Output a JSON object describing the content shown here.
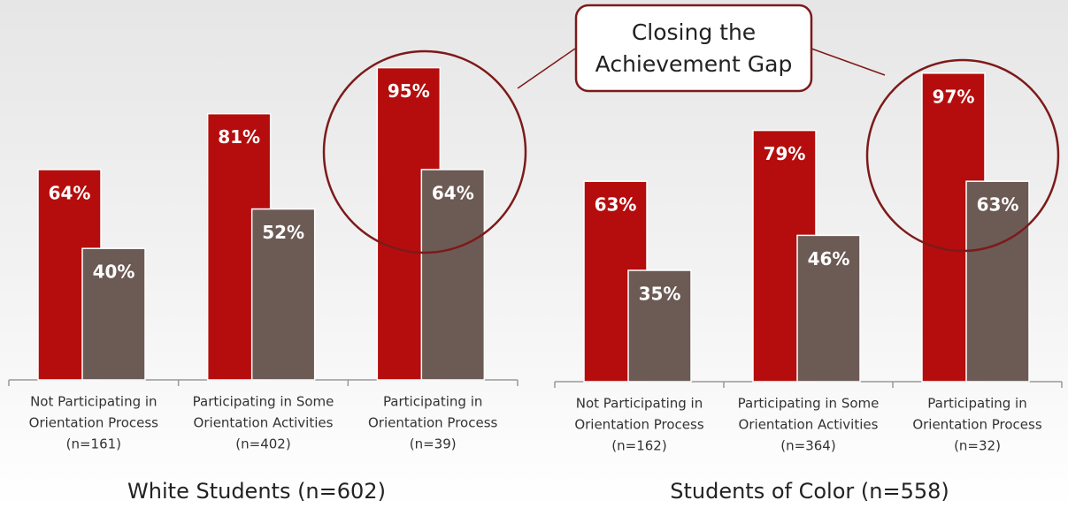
{
  "chart_data": [
    {
      "type": "bar",
      "title": "White Students (n=602)",
      "categories": [
        [
          "Not Participating in",
          "Orientation Process",
          "(n=161)"
        ],
        [
          "Participating in Some",
          "Orientation Activities",
          "(n=402)"
        ],
        [
          "Participating in",
          "Orientation Process",
          "(n=39)"
        ]
      ],
      "series": [
        {
          "color": "#b50d0d",
          "values": [
            64,
            81,
            95
          ],
          "value_labels": [
            "64%",
            "81%",
            "95%"
          ]
        },
        {
          "color": "#6c5a55",
          "values": [
            40,
            52,
            64
          ],
          "value_labels": [
            "40%",
            "52%",
            "64%"
          ]
        }
      ],
      "ylim": [
        0,
        100
      ]
    },
    {
      "type": "bar",
      "title": "Students of Color (n=558)",
      "categories": [
        [
          "Not Participating in",
          "Orientation Process",
          "(n=162)"
        ],
        [
          "Participating in Some",
          "Orientation Activities",
          "(n=364)"
        ],
        [
          "Participating in",
          "Orientation Process",
          "(n=32)"
        ]
      ],
      "series": [
        {
          "color": "#b50d0d",
          "values": [
            63,
            79,
            97
          ],
          "value_labels": [
            "63%",
            "79%",
            "97%"
          ]
        },
        {
          "color": "#6c5a55",
          "values": [
            35,
            46,
            63
          ],
          "value_labels": [
            "35%",
            "46%",
            "63%"
          ]
        }
      ],
      "ylim": [
        0,
        100
      ]
    }
  ],
  "annotation": [
    "Closing the",
    "Achievement Gap"
  ]
}
